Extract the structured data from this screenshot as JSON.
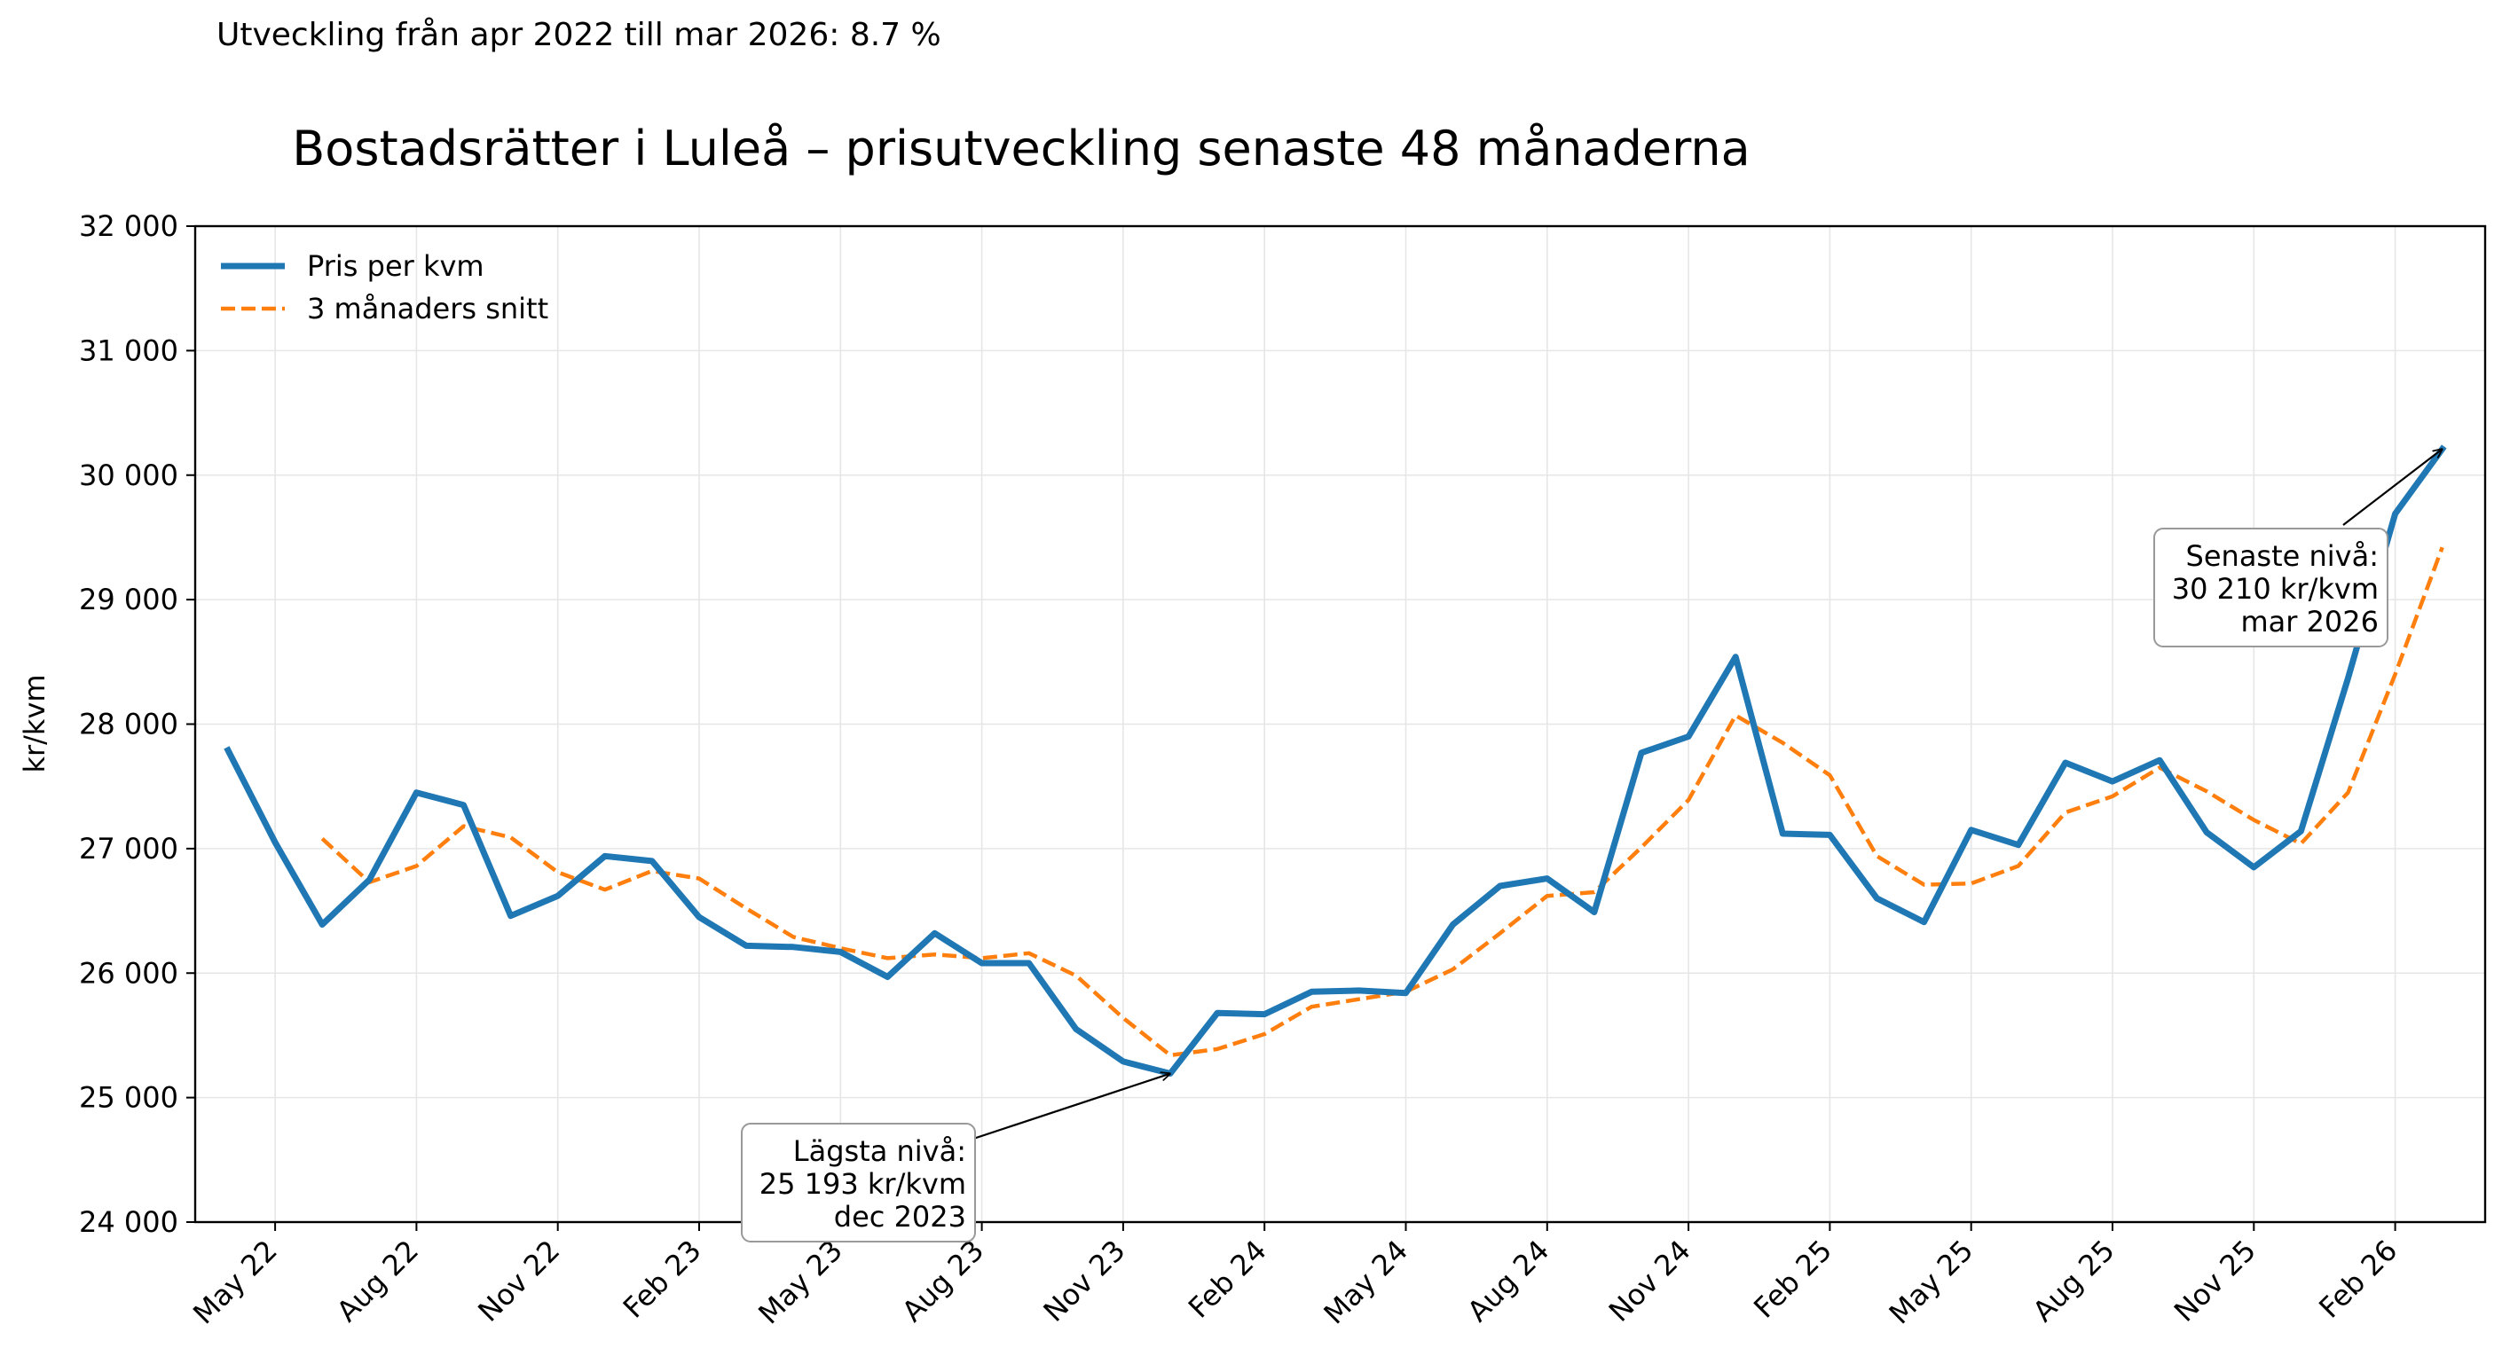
{
  "subtitle": "Utveckling från apr 2022 till mar 2026: 8.7 %",
  "chart_data": {
    "type": "line",
    "title": "Bostadsrätter i Luleå – prisutveckling senaste 48 månaderna",
    "xlabel": "",
    "ylabel": "kr/kvm",
    "x": [
      "2022-04",
      "2022-05",
      "2022-06",
      "2022-07",
      "2022-08",
      "2022-09",
      "2022-10",
      "2022-11",
      "2022-12",
      "2023-01",
      "2023-02",
      "2023-03",
      "2023-04",
      "2023-05",
      "2023-06",
      "2023-07",
      "2023-08",
      "2023-09",
      "2023-10",
      "2023-11",
      "2023-12",
      "2024-01",
      "2024-02",
      "2024-03",
      "2024-04",
      "2024-05",
      "2024-06",
      "2024-07",
      "2024-08",
      "2024-09",
      "2024-10",
      "2024-11",
      "2024-12",
      "2025-01",
      "2025-02",
      "2025-03",
      "2025-04",
      "2025-05",
      "2025-06",
      "2025-07",
      "2025-08",
      "2025-09",
      "2025-10",
      "2025-11",
      "2025-12",
      "2026-01",
      "2026-02",
      "2026-03"
    ],
    "x_ticks": [
      {
        "x": "2022-05",
        "label": "May 22"
      },
      {
        "x": "2022-08",
        "label": "Aug 22"
      },
      {
        "x": "2022-11",
        "label": "Nov 22"
      },
      {
        "x": "2023-02",
        "label": "Feb 23"
      },
      {
        "x": "2023-05",
        "label": "May 23"
      },
      {
        "x": "2023-08",
        "label": "Aug 23"
      },
      {
        "x": "2023-11",
        "label": "Nov 23"
      },
      {
        "x": "2024-02",
        "label": "Feb 24"
      },
      {
        "x": "2024-05",
        "label": "May 24"
      },
      {
        "x": "2024-08",
        "label": "Aug 24"
      },
      {
        "x": "2024-11",
        "label": "Nov 24"
      },
      {
        "x": "2025-02",
        "label": "Feb 25"
      },
      {
        "x": "2025-05",
        "label": "May 25"
      },
      {
        "x": "2025-08",
        "label": "Aug 25"
      },
      {
        "x": "2025-11",
        "label": "Nov 25"
      },
      {
        "x": "2026-02",
        "label": "Feb 26"
      }
    ],
    "ylim": [
      24000,
      32000
    ],
    "y_ticks": [
      {
        "value": 24000,
        "label": "24 000"
      },
      {
        "value": 25000,
        "label": "25 000"
      },
      {
        "value": 26000,
        "label": "26 000"
      },
      {
        "value": 27000,
        "label": "27 000"
      },
      {
        "value": 28000,
        "label": "28 000"
      },
      {
        "value": 29000,
        "label": "29 000"
      },
      {
        "value": 30000,
        "label": "30 000"
      },
      {
        "value": 31000,
        "label": "31 000"
      },
      {
        "value": 32000,
        "label": "32 000"
      }
    ],
    "grid": true,
    "legend": "top-left",
    "series": [
      {
        "name": "Pris per kvm",
        "color": "#1f77b4",
        "style": "solid",
        "values": [
          27790,
          27050,
          26390,
          26750,
          27450,
          27350,
          26460,
          26620,
          26940,
          26900,
          26450,
          26220,
          26210,
          26170,
          25970,
          26320,
          26080,
          26080,
          25550,
          25290,
          25193,
          25680,
          25670,
          25850,
          25860,
          25840,
          26390,
          26700,
          26760,
          26490,
          27770,
          27900,
          28540,
          27120,
          27110,
          26600,
          26410,
          27150,
          27030,
          27690,
          27540,
          27710,
          27130,
          26850,
          27140,
          28370,
          29690,
          30210
        ]
      },
      {
        "name": "3 månaders snitt",
        "color": "#ff7f0e",
        "style": "dashed",
        "values": [
          null,
          null,
          27080,
          26730,
          26860,
          27180,
          27090,
          26810,
          26670,
          26820,
          26760,
          26520,
          26290,
          26200,
          26120,
          26150,
          26120,
          26160,
          25980,
          25640,
          25340,
          25390,
          25510,
          25730,
          25790,
          25850,
          26030,
          26320,
          26620,
          26650,
          27010,
          27390,
          28070,
          27850,
          27590,
          26940,
          26710,
          26720,
          26860,
          27290,
          27420,
          27650,
          27460,
          27230,
          27040,
          27450,
          28400,
          29420
        ]
      }
    ],
    "annotations": [
      {
        "text_lines": [
          "Lägsta nivå:",
          "25 193 kr/kvm",
          "dec 2023"
        ],
        "x": "2023-12",
        "y": 25193
      },
      {
        "text_lines": [
          "Senaste nivå:",
          "30 210 kr/kvm",
          "mar 2026"
        ],
        "x": "2026-03",
        "y": 30210
      }
    ]
  }
}
